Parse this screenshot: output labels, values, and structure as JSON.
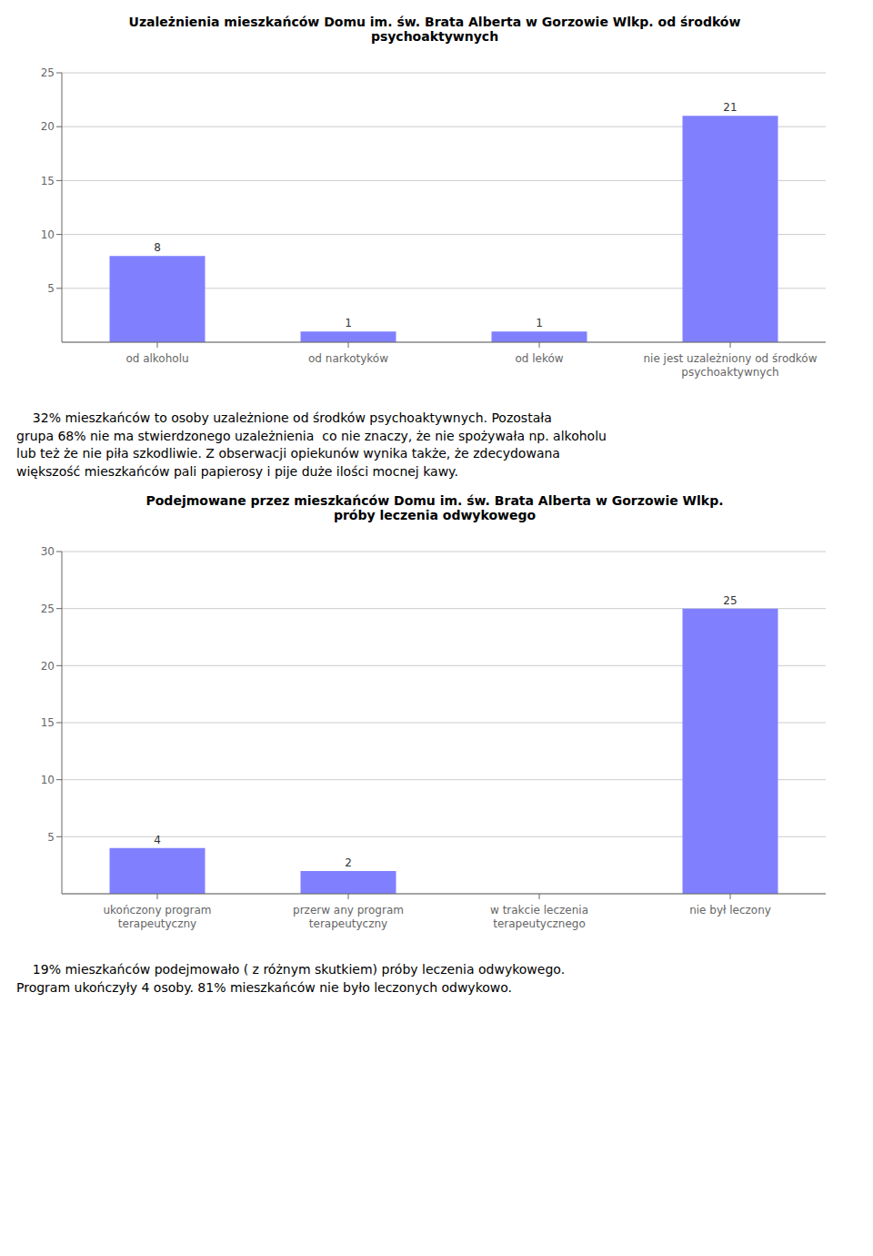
{
  "chart_data": [
    {
      "type": "bar",
      "title": "Uzależnienia mieszkańców Domu im. św. Brata Alberta w Gorzowie Wlkp. od środków\npsychoaktywnych",
      "categories": [
        "od alkoholu",
        "od narkotyków",
        "od leków",
        "nie jest uzależniony od środków\npsychoaktywnych"
      ],
      "values": [
        8,
        1,
        1,
        21
      ],
      "color": "#8080ff",
      "ylim": [
        0,
        25
      ],
      "yticks": [
        5,
        10,
        15,
        20,
        25
      ],
      "grid": true,
      "data_labels": true,
      "annotations": [
        "    32% mieszkańców to osoby uzależnione od środków psychoaktywnych. Pozostała\ngrupa 68% nie ma stwierdzonego uzależnienia  co nie znaczy, że nie spożywała np. alkoholu\nlub też że nie piła szkodliwie. Z obserwacji opiekunów wynika także, że zdecydowana\nwiększość mieszkańców pali papierosy i pije duże ilości mocnej kawy."
      ]
    },
    {
      "type": "bar",
      "title": "Podejmowane przez mieszkańców Domu im. św. Brata Alberta w Gorzowie Wlkp.\npróby leczenia odwykowego",
      "categories": [
        "ukończony program\nterapeutyczny",
        "przerw any program\nterapeutyczny",
        "w trakcie leczenia\nterapeutycznego",
        "nie był leczony"
      ],
      "values": [
        4,
        2,
        0,
        25
      ],
      "color": "#8080ff",
      "ylim": [
        0,
        30
      ],
      "yticks": [
        5,
        10,
        15,
        20,
        25,
        30
      ],
      "grid": true,
      "data_labels": true,
      "annotations": [
        "    19% mieszkańców podejmowało ( z różnym skutkiem) próby leczenia odwykowego.\nProgram ukończyły 4 osoby. 81% mieszkańców nie było leczonych odwykowo."
      ]
    }
  ]
}
